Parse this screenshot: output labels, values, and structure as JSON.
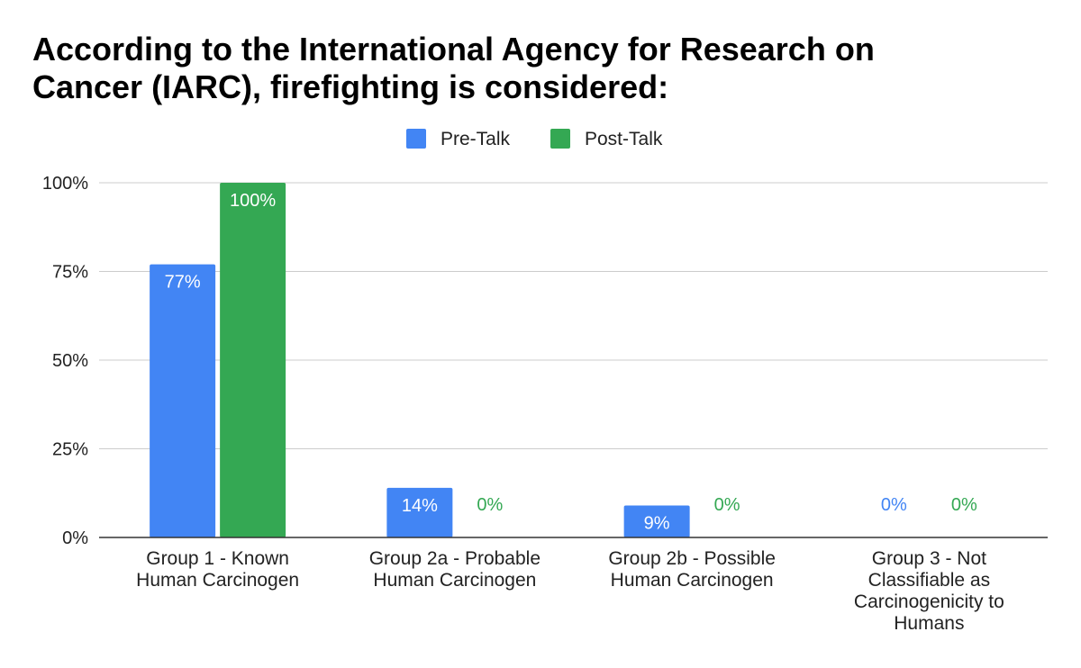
{
  "chart_data": {
    "type": "bar",
    "title_lines": [
      "According to the International Agency for Research on",
      "Cancer (IARC), firefighting is considered:"
    ],
    "categories": [
      [
        "Group 1 - Known",
        "Human Carcinogen"
      ],
      [
        "Group 2a - Probable",
        "Human Carcinogen"
      ],
      [
        "Group 2b - Possible",
        "Human Carcinogen"
      ],
      [
        "Group 3 - Not",
        "Classifiable as",
        "Carcinogenicity to",
        "Humans"
      ]
    ],
    "series": [
      {
        "name": "Pre-Talk",
        "color": "#4285f4",
        "values": [
          77,
          14,
          9,
          0
        ],
        "labels": [
          "77%",
          "14%",
          "9%",
          "0%"
        ]
      },
      {
        "name": "Post-Talk",
        "color": "#34a853",
        "values": [
          100,
          0,
          0,
          0
        ],
        "labels": [
          "100%",
          "0%",
          "0%",
          "0%"
        ]
      }
    ],
    "y_ticks": [
      0,
      25,
      50,
      75,
      100
    ],
    "y_tick_labels": [
      "0%",
      "25%",
      "50%",
      "75%",
      "100%"
    ],
    "ylim": [
      0,
      100
    ],
    "xlabel": "",
    "ylabel": "",
    "legend_position": "top-center",
    "grid": true
  }
}
